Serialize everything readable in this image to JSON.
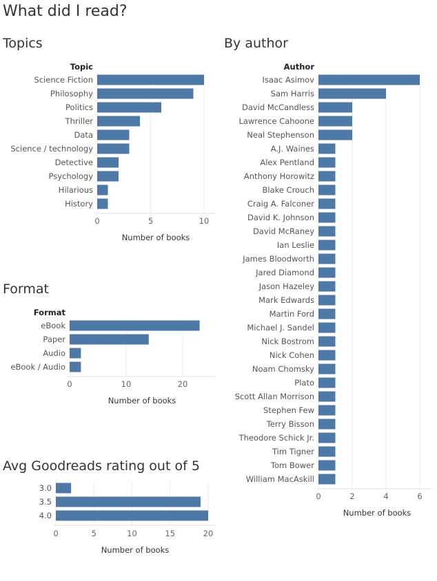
{
  "page": {
    "title": "What did I read?"
  },
  "chart_data": [
    {
      "id": "topics",
      "type": "bar",
      "orientation": "horizontal",
      "title": "Topics",
      "category_header": "Topic",
      "xlabel": "Number of books",
      "xlim": [
        0,
        11
      ],
      "ticks": [
        0,
        5,
        10
      ],
      "categories": [
        "Science Fiction",
        "Philosophy",
        "Politics",
        "Thriller",
        "Data",
        "Science / technology",
        "Detective",
        "Psychology",
        "Hilarious",
        "History"
      ],
      "values": [
        10,
        9,
        6,
        4,
        3,
        3,
        2,
        2,
        1,
        1
      ]
    },
    {
      "id": "format",
      "type": "bar",
      "orientation": "horizontal",
      "title": "Format",
      "category_header": "Format",
      "xlabel": "Number of books",
      "xlim": [
        0,
        25
      ],
      "ticks": [
        0,
        10,
        20
      ],
      "categories": [
        "eBook",
        "Paper",
        "Audio",
        "eBook / Audio"
      ],
      "values": [
        23,
        14,
        2,
        2
      ]
    },
    {
      "id": "rating",
      "type": "bar",
      "orientation": "horizontal",
      "title": "Avg Goodreads rating out of 5",
      "category_header": "",
      "xlabel": "Number of books",
      "xlim": [
        0,
        22
      ],
      "ticks": [
        0,
        5,
        10,
        15,
        20
      ],
      "categories": [
        "3.0",
        "3.5",
        "4.0"
      ],
      "values": [
        2,
        19,
        20
      ]
    },
    {
      "id": "author",
      "type": "bar",
      "orientation": "horizontal",
      "title": "By author",
      "category_header": "Author",
      "xlabel": "Number of books",
      "xlim": [
        0,
        7
      ],
      "ticks": [
        0,
        2,
        4,
        6
      ],
      "categories": [
        "Isaac Asimov",
        "Sam Harris",
        "David McCandless",
        "Lawrence Cahoone",
        "Neal Stephenson",
        "A.J. Waines",
        "Alex Pentland",
        "Anthony Horowitz",
        "Blake Crouch",
        "Craig A. Falconer",
        "David K. Johnson",
        "David McRaney",
        "Ian Leslie",
        "James Bloodworth",
        "Jared Diamond",
        "Jason Hazeley",
        "Mark  Edwards",
        "Martin Ford",
        "Michael J. Sandel",
        "Nick Bostrom",
        "Nick Cohen",
        "Noam Chomsky",
        "Plato",
        "Scott Allan Morrison",
        "Stephen Few",
        "Terry Bisson",
        "Theodore Schick Jr.",
        "Tim Tigner",
        "Tom Bower",
        "William MacAskill"
      ],
      "values": [
        6,
        4,
        2,
        2,
        2,
        1,
        1,
        1,
        1,
        1,
        1,
        1,
        1,
        1,
        1,
        1,
        1,
        1,
        1,
        1,
        1,
        1,
        1,
        1,
        1,
        1,
        1,
        1,
        1,
        1
      ]
    }
  ]
}
